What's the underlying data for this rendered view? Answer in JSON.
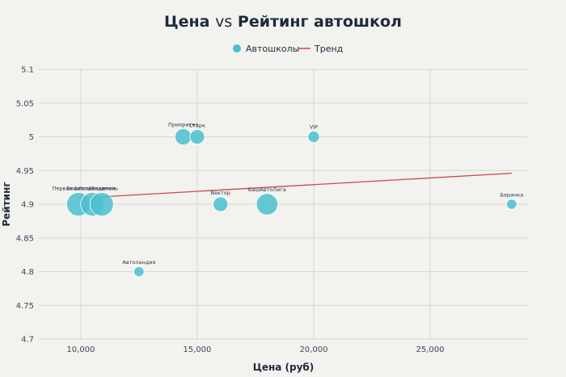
{
  "chart_data": {
    "type": "scatter",
    "title_part1": "Цена",
    "title_vs": "vs",
    "title_part2": "Рейтинг автошкол",
    "xlabel": "Цена (руб)",
    "ylabel": "Рейтинг",
    "xlim": [
      8200,
      29200
    ],
    "ylim": [
      4.7,
      5.1
    ],
    "x_ticks": [
      10000,
      15000,
      20000,
      25000
    ],
    "x_tick_labels": [
      "10,000",
      "15,000",
      "20,000",
      "25,000"
    ],
    "y_ticks": [
      4.7,
      4.75,
      4.8,
      4.85,
      4.9,
      4.95,
      5.0,
      5.05,
      5.1
    ],
    "y_tick_labels": [
      "4.7",
      "4.75",
      "4.8",
      "4.85",
      "4.9",
      "4.95",
      "5",
      "5.05",
      "5.1"
    ],
    "grid": true,
    "legend_position": "top-center",
    "legend": [
      {
        "name": "Автошколы",
        "kind": "marker",
        "color": "#4bbfcf"
      },
      {
        "name": "Тренд",
        "kind": "line",
        "color": "#c94a4a"
      }
    ],
    "points": [
      {
        "label": "Первая Автошкола",
        "x": 9900,
        "y": 4.9,
        "size": 10
      },
      {
        "label": "БашАвтоВодитель",
        "x": 10500,
        "y": 4.9,
        "size": 10
      },
      {
        "label": "Академия",
        "x": 10900,
        "y": 4.9,
        "size": 10
      },
      {
        "label": "Автоландия",
        "x": 12500,
        "y": 4.8,
        "size": 1
      },
      {
        "label": "Приоритет",
        "x": 14400,
        "y": 5.0,
        "size": 4
      },
      {
        "label": "Старк",
        "x": 15000,
        "y": 5.0,
        "size": 3
      },
      {
        "label": "Вектор",
        "x": 16000,
        "y": 4.9,
        "size": 3
      },
      {
        "label": "БашАвтоЛига",
        "x": 18000,
        "y": 4.9,
        "size": 8
      },
      {
        "label": "VIP",
        "x": 20000,
        "y": 5.0,
        "size": 1.5
      },
      {
        "label": "Баранка",
        "x": 28500,
        "y": 4.9,
        "size": 1
      }
    ],
    "trend": {
      "x": [
        9900,
        28500
      ],
      "y": [
        4.909,
        4.946
      ]
    },
    "colors": {
      "marker": "#4bbfcf",
      "trend": "#c94a4a",
      "grid": "#d8d8d2"
    }
  }
}
